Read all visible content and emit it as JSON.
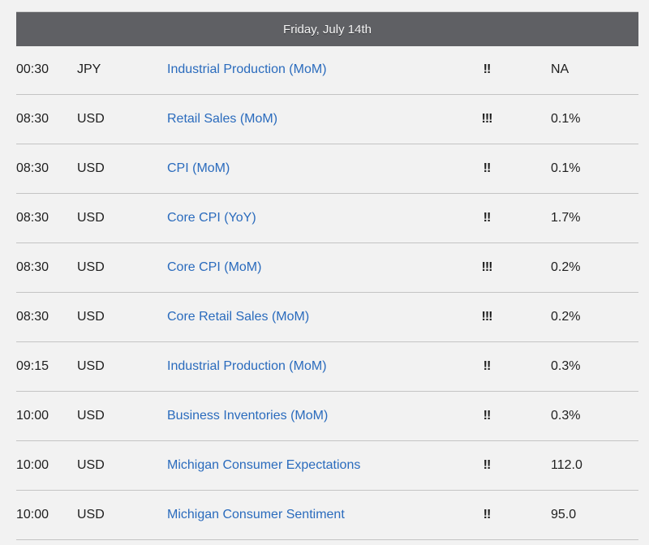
{
  "header": {
    "date": "Friday, July 14th"
  },
  "events": [
    {
      "time": "00:30",
      "currency": "JPY",
      "event": "Industrial Production (MoM)",
      "importance": "!!",
      "value": "NA"
    },
    {
      "time": "08:30",
      "currency": "USD",
      "event": "Retail Sales (MoM)",
      "importance": "!!!",
      "value": "0.1%"
    },
    {
      "time": "08:30",
      "currency": "USD",
      "event": "CPI (MoM)",
      "importance": "!!",
      "value": "0.1%"
    },
    {
      "time": "08:30",
      "currency": "USD",
      "event": "Core CPI (YoY)",
      "importance": "!!",
      "value": "1.7%"
    },
    {
      "time": "08:30",
      "currency": "USD",
      "event": "Core CPI (MoM)",
      "importance": "!!!",
      "value": "0.2%"
    },
    {
      "time": "08:30",
      "currency": "USD",
      "event": "Core Retail Sales (MoM)",
      "importance": "!!!",
      "value": "0.2%"
    },
    {
      "time": "09:15",
      "currency": "USD",
      "event": "Industrial Production (MoM)",
      "importance": "!!",
      "value": "0.3%"
    },
    {
      "time": "10:00",
      "currency": "USD",
      "event": "Business Inventories (MoM)",
      "importance": "!!",
      "value": "0.3%"
    },
    {
      "time": "10:00",
      "currency": "USD",
      "event": "Michigan Consumer Expectations",
      "importance": "!!",
      "value": "112.0"
    },
    {
      "time": "10:00",
      "currency": "USD",
      "event": "Michigan Consumer Sentiment",
      "importance": "!!",
      "value": "95.0"
    }
  ]
}
